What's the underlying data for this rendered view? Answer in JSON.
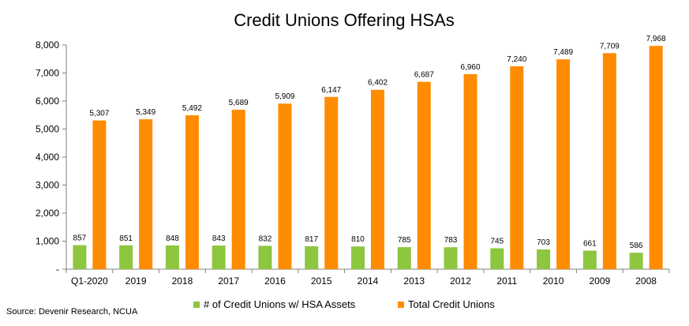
{
  "colors": {
    "green": "#8dc63f",
    "orange": "#ff8c00",
    "axis": "#808080"
  },
  "source": "Source: Devenir Research, NCUA",
  "chart_data": {
    "type": "bar",
    "title": "Credit Unions Offering HSAs",
    "xlabel": "",
    "ylabel": "",
    "ylim": [
      0,
      8000
    ],
    "yticks": [
      "-",
      "1,000",
      "2,000",
      "3,000",
      "4,000",
      "5,000",
      "6,000",
      "7,000",
      "8,000"
    ],
    "grid": false,
    "legend_position": "bottom",
    "categories": [
      "Q1-2020",
      "2019",
      "2018",
      "2017",
      "2016",
      "2015",
      "2014",
      "2013",
      "2012",
      "2011",
      "2010",
      "2009",
      "2008"
    ],
    "series": [
      {
        "name": "# of Credit Unions w/ HSA Assets",
        "color": "#8dc63f",
        "values": [
          857,
          851,
          848,
          843,
          832,
          817,
          810,
          785,
          783,
          745,
          703,
          661,
          586
        ],
        "labels": [
          "857",
          "851",
          "848",
          "843",
          "832",
          "817",
          "810",
          "785",
          "783",
          "745",
          "703",
          "661",
          "586"
        ]
      },
      {
        "name": "Total Credit Unions",
        "color": "#ff8c00",
        "values": [
          5307,
          5349,
          5492,
          5689,
          5909,
          6147,
          6402,
          6687,
          6960,
          7240,
          7489,
          7709,
          7968
        ],
        "labels": [
          "5,307",
          "5,349",
          "5,492",
          "5,689",
          "5,909",
          "6,147",
          "6,402",
          "6,687",
          "6,960",
          "7,240",
          "7,489",
          "7,709",
          "7,968"
        ]
      }
    ]
  }
}
